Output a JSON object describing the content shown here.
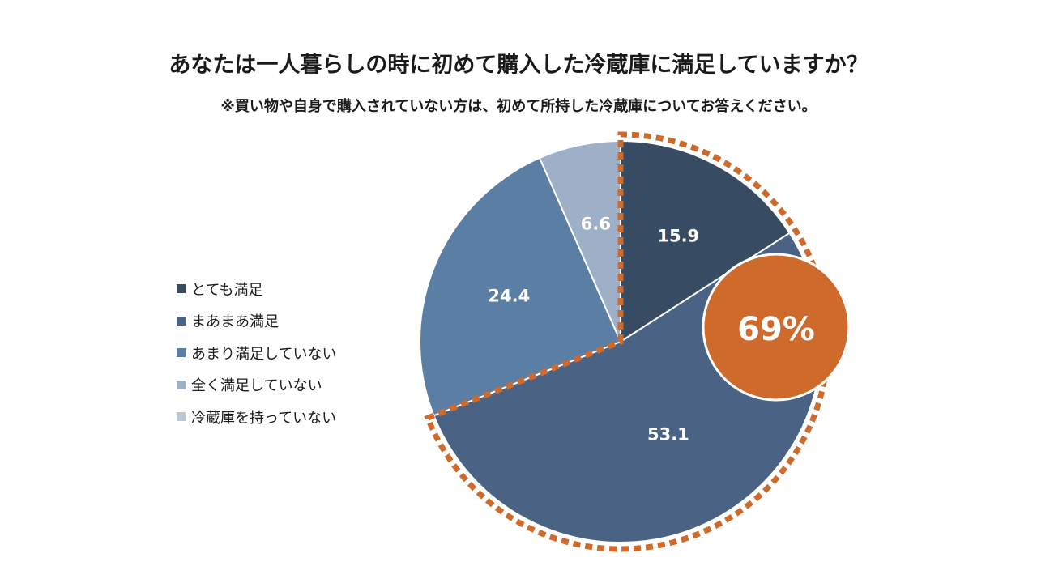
{
  "chart_data": {
    "type": "pie",
    "title": "あなたは一人暮らしの時に初めて購入した冷蔵庫に満足していますか？",
    "subtitle": "※買い物や自身で購入されていない方は、初めて所持した冷蔵庫についてお答えください。",
    "categories": [
      "とても満足",
      "まあまあ満足",
      "あまり満足していない",
      "全く満足していない",
      "冷蔵庫を持っていない"
    ],
    "values": [
      15.9,
      53.1,
      24.4,
      6.6,
      0
    ],
    "value_labels": [
      "15.9",
      "53.1",
      "24.4",
      "6.6",
      ""
    ],
    "colors": [
      "#374c63",
      "#4a6384",
      "#5b7ea4",
      "#9db0c8",
      "#bcc8d9"
    ],
    "highlight": {
      "text": "69%",
      "covers": [
        "とても満足",
        "まあまあ満足"
      ],
      "color": "#cd6a2c"
    },
    "legend_position": "left"
  }
}
